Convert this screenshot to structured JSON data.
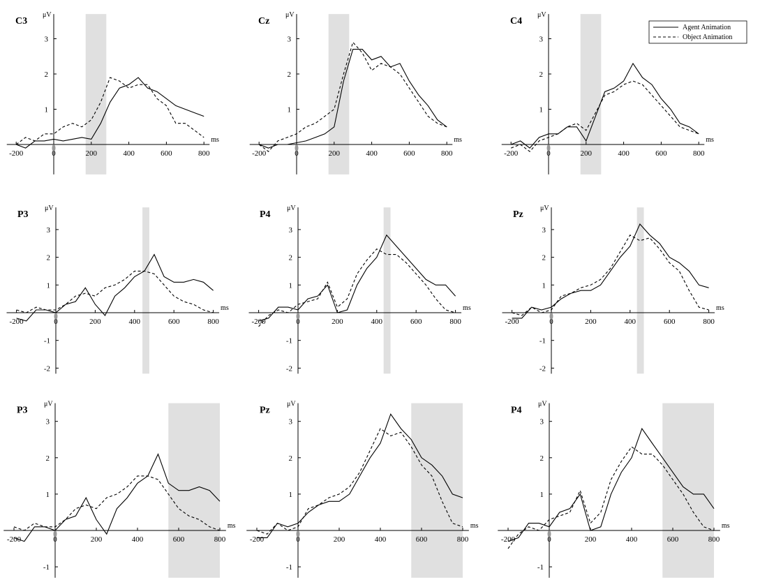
{
  "legend": [
    "Agent Animation",
    "Object Animation"
  ],
  "chart_data": [
    {
      "type": "line",
      "title": "C3",
      "y_label": "μV",
      "x_label": "ms",
      "x": [
        -200,
        -150,
        -100,
        -50,
        0,
        50,
        100,
        150,
        200,
        250,
        300,
        350,
        400,
        450,
        500,
        550,
        600,
        650,
        700,
        750,
        800
      ],
      "series": [
        {
          "style": "solid",
          "color": "#000000",
          "values": [
            0.0,
            -0.1,
            0.1,
            0.1,
            0.15,
            0.1,
            0.15,
            0.2,
            0.15,
            0.6,
            1.2,
            1.6,
            1.7,
            1.9,
            1.6,
            1.5,
            1.3,
            1.1,
            1.0,
            0.9,
            0.8
          ]
        },
        {
          "style": "dashed",
          "color": "#000000",
          "values": [
            0.0,
            0.2,
            0.1,
            0.3,
            0.3,
            0.5,
            0.6,
            0.5,
            0.7,
            1.2,
            1.9,
            1.8,
            1.6,
            1.7,
            1.7,
            1.3,
            1.1,
            0.6,
            0.6,
            0.4,
            0.2
          ]
        }
      ],
      "shade": [
        170,
        280
      ],
      "xlim": [
        -250,
        830
      ],
      "ylim": [
        -0.85,
        3.7
      ],
      "xticks": [
        -200,
        0,
        200,
        400,
        600,
        800
      ],
      "yticks": [
        1,
        2,
        3
      ]
    },
    {
      "type": "line",
      "title": "Cz",
      "y_label": "μV",
      "x_label": "ms",
      "x": [
        -200,
        -150,
        -100,
        -50,
        0,
        50,
        100,
        150,
        200,
        250,
        300,
        350,
        400,
        450,
        500,
        550,
        600,
        650,
        700,
        750,
        800
      ],
      "series": [
        {
          "style": "solid",
          "color": "#000000",
          "values": [
            0.0,
            -0.1,
            0.0,
            0.0,
            0.05,
            0.1,
            0.2,
            0.3,
            0.5,
            1.8,
            2.7,
            2.7,
            2.4,
            2.5,
            2.2,
            2.3,
            1.8,
            1.4,
            1.1,
            0.7,
            0.5
          ]
        },
        {
          "style": "dashed",
          "color": "#000000",
          "values": [
            0.0,
            -0.2,
            0.1,
            0.2,
            0.3,
            0.5,
            0.6,
            0.8,
            1.0,
            2.0,
            2.9,
            2.6,
            2.1,
            2.3,
            2.2,
            2.0,
            1.6,
            1.2,
            0.8,
            0.6,
            0.5
          ]
        }
      ],
      "shade": [
        170,
        280
      ],
      "xlim": [
        -250,
        830
      ],
      "ylim": [
        -0.85,
        3.7
      ],
      "xticks": [
        -200,
        0,
        200,
        400,
        600,
        800
      ],
      "yticks": [
        1,
        2,
        3
      ]
    },
    {
      "type": "line",
      "title": "C4",
      "y_label": "μV",
      "x_label": "ms",
      "x": [
        -200,
        -150,
        -100,
        -50,
        0,
        50,
        100,
        150,
        200,
        250,
        300,
        350,
        400,
        450,
        500,
        550,
        600,
        650,
        700,
        750,
        800
      ],
      "series": [
        {
          "style": "solid",
          "color": "#000000",
          "values": [
            0.0,
            0.1,
            -0.1,
            0.2,
            0.3,
            0.3,
            0.5,
            0.5,
            0.1,
            0.8,
            1.5,
            1.6,
            1.8,
            2.3,
            1.9,
            1.7,
            1.3,
            1.0,
            0.6,
            0.5,
            0.3
          ]
        },
        {
          "style": "dashed",
          "color": "#000000",
          "values": [
            -0.1,
            0.0,
            -0.2,
            0.1,
            0.2,
            0.3,
            0.5,
            0.6,
            0.4,
            0.9,
            1.4,
            1.5,
            1.7,
            1.8,
            1.7,
            1.4,
            1.1,
            0.8,
            0.5,
            0.4,
            0.3
          ]
        }
      ],
      "shade": [
        170,
        280
      ],
      "xlim": [
        -250,
        830
      ],
      "ylim": [
        -0.85,
        3.7
      ],
      "xticks": [
        -200,
        0,
        200,
        400,
        600,
        800
      ],
      "yticks": [
        1,
        2,
        3
      ]
    },
    {
      "type": "line",
      "title": "P3",
      "y_label": "μV",
      "x_label": "ms",
      "x": [
        -200,
        -150,
        -100,
        -50,
        0,
        50,
        100,
        150,
        200,
        250,
        300,
        350,
        400,
        450,
        500,
        550,
        600,
        650,
        700,
        750,
        800
      ],
      "series": [
        {
          "style": "solid",
          "color": "#000000",
          "values": [
            -0.2,
            -0.3,
            0.1,
            0.1,
            0.0,
            0.3,
            0.4,
            0.9,
            0.3,
            -0.1,
            0.6,
            0.9,
            1.3,
            1.5,
            2.1,
            1.3,
            1.1,
            1.1,
            1.2,
            1.1,
            0.8
          ]
        },
        {
          "style": "dashed",
          "color": "#000000",
          "values": [
            0.1,
            0.0,
            0.2,
            0.1,
            0.1,
            0.3,
            0.6,
            0.7,
            0.6,
            0.9,
            1.0,
            1.2,
            1.5,
            1.5,
            1.4,
            1.0,
            0.6,
            0.4,
            0.3,
            0.1,
            0.0
          ]
        }
      ],
      "shade": [
        440,
        475
      ],
      "xlim": [
        -250,
        830
      ],
      "ylim": [
        -2.2,
        3.8
      ],
      "xticks": [
        -200,
        0,
        200,
        400,
        600,
        800
      ],
      "yticks": [
        -2,
        -1,
        1,
        2,
        3
      ]
    },
    {
      "type": "line",
      "title": "P4",
      "y_label": "μV",
      "x_label": "ms",
      "x": [
        -200,
        -150,
        -100,
        -50,
        0,
        50,
        100,
        150,
        200,
        250,
        300,
        350,
        400,
        450,
        500,
        550,
        600,
        650,
        700,
        750,
        800
      ],
      "series": [
        {
          "style": "solid",
          "color": "#000000",
          "values": [
            -0.3,
            -0.2,
            0.2,
            0.2,
            0.1,
            0.5,
            0.6,
            1.0,
            0.0,
            0.1,
            1.0,
            1.6,
            2.0,
            2.8,
            2.4,
            2.0,
            1.6,
            1.2,
            1.0,
            1.0,
            0.6
          ]
        },
        {
          "style": "dashed",
          "color": "#000000",
          "values": [
            -0.5,
            -0.1,
            0.1,
            0.0,
            0.3,
            0.4,
            0.5,
            1.1,
            0.2,
            0.5,
            1.4,
            1.9,
            2.3,
            2.1,
            2.1,
            1.8,
            1.4,
            1.0,
            0.5,
            0.1,
            0.0
          ]
        }
      ],
      "shade": [
        435,
        470
      ],
      "xlim": [
        -250,
        830
      ],
      "ylim": [
        -2.2,
        3.8
      ],
      "xticks": [
        -200,
        0,
        200,
        400,
        600,
        800
      ],
      "yticks": [
        -2,
        -1,
        1,
        2,
        3
      ]
    },
    {
      "type": "line",
      "title": "Pz",
      "y_label": "μV",
      "x_label": "ms",
      "x": [
        -200,
        -150,
        -100,
        -50,
        0,
        50,
        100,
        150,
        200,
        250,
        300,
        350,
        400,
        450,
        500,
        550,
        600,
        650,
        700,
        750,
        800
      ],
      "series": [
        {
          "style": "solid",
          "color": "#000000",
          "values": [
            -0.2,
            -0.2,
            0.2,
            0.1,
            0.2,
            0.5,
            0.7,
            0.8,
            0.8,
            1.0,
            1.5,
            2.0,
            2.4,
            3.2,
            2.8,
            2.5,
            2.0,
            1.8,
            1.5,
            1.0,
            0.9
          ]
        },
        {
          "style": "dashed",
          "color": "#000000",
          "values": [
            0.0,
            -0.1,
            0.2,
            0.0,
            0.1,
            0.6,
            0.7,
            0.9,
            1.0,
            1.2,
            1.6,
            2.2,
            2.8,
            2.6,
            2.7,
            2.3,
            1.8,
            1.5,
            0.8,
            0.2,
            0.1
          ]
        }
      ],
      "shade": [
        435,
        470
      ],
      "xlim": [
        -250,
        830
      ],
      "ylim": [
        -2.2,
        3.8
      ],
      "xticks": [
        -200,
        0,
        200,
        400,
        600,
        800
      ],
      "yticks": [
        -2,
        -1,
        1,
        2,
        3
      ]
    },
    {
      "type": "line",
      "title": "P3",
      "y_label": "μV",
      "x_label": "ms",
      "x": [
        -200,
        -150,
        -100,
        -50,
        0,
        50,
        100,
        150,
        200,
        250,
        300,
        350,
        400,
        450,
        500,
        550,
        600,
        650,
        700,
        750,
        800
      ],
      "series": [
        {
          "style": "solid",
          "color": "#000000",
          "values": [
            -0.2,
            -0.3,
            0.1,
            0.1,
            0.0,
            0.3,
            0.4,
            0.9,
            0.3,
            -0.1,
            0.6,
            0.9,
            1.3,
            1.5,
            2.1,
            1.3,
            1.1,
            1.1,
            1.2,
            1.1,
            0.8
          ]
        },
        {
          "style": "dashed",
          "color": "#000000",
          "values": [
            0.1,
            0.0,
            0.2,
            0.1,
            0.1,
            0.3,
            0.6,
            0.7,
            0.6,
            0.9,
            1.0,
            1.2,
            1.5,
            1.5,
            1.4,
            1.0,
            0.6,
            0.4,
            0.3,
            0.1,
            0.0
          ]
        }
      ],
      "shade": [
        550,
        800
      ],
      "xlim": [
        -250,
        830
      ],
      "ylim": [
        -1.3,
        3.5
      ],
      "xticks": [
        -200,
        0,
        200,
        400,
        600,
        800
      ],
      "yticks": [
        -1,
        1,
        2,
        3
      ]
    },
    {
      "type": "line",
      "title": "Pz",
      "y_label": "μV",
      "x_label": "ms",
      "x": [
        -200,
        -150,
        -100,
        -50,
        0,
        50,
        100,
        150,
        200,
        250,
        300,
        350,
        400,
        450,
        500,
        550,
        600,
        650,
        700,
        750,
        800
      ],
      "series": [
        {
          "style": "solid",
          "color": "#000000",
          "values": [
            -0.2,
            -0.2,
            0.2,
            0.1,
            0.2,
            0.5,
            0.7,
            0.8,
            0.8,
            1.0,
            1.5,
            2.0,
            2.4,
            3.2,
            2.8,
            2.5,
            2.0,
            1.8,
            1.5,
            1.0,
            0.9
          ]
        },
        {
          "style": "dashed",
          "color": "#000000",
          "values": [
            0.0,
            -0.1,
            0.2,
            0.0,
            0.1,
            0.6,
            0.7,
            0.9,
            1.0,
            1.2,
            1.6,
            2.2,
            2.8,
            2.6,
            2.7,
            2.3,
            1.8,
            1.5,
            0.8,
            0.2,
            0.1
          ]
        }
      ],
      "shade": [
        550,
        800
      ],
      "xlim": [
        -250,
        830
      ],
      "ylim": [
        -1.3,
        3.5
      ],
      "xticks": [
        -200,
        0,
        200,
        400,
        600,
        800
      ],
      "yticks": [
        -1,
        1,
        2,
        3
      ]
    },
    {
      "type": "line",
      "title": "P4",
      "y_label": "μV",
      "x_label": "ms",
      "x": [
        -200,
        -150,
        -100,
        -50,
        0,
        50,
        100,
        150,
        200,
        250,
        300,
        350,
        400,
        450,
        500,
        550,
        600,
        650,
        700,
        750,
        800
      ],
      "series": [
        {
          "style": "solid",
          "color": "#000000",
          "values": [
            -0.3,
            -0.2,
            0.2,
            0.2,
            0.1,
            0.5,
            0.6,
            1.0,
            0.0,
            0.1,
            1.0,
            1.6,
            2.0,
            2.8,
            2.4,
            2.0,
            1.6,
            1.2,
            1.0,
            1.0,
            0.6
          ]
        },
        {
          "style": "dashed",
          "color": "#000000",
          "values": [
            -0.5,
            -0.1,
            0.1,
            0.0,
            0.3,
            0.4,
            0.5,
            1.1,
            0.2,
            0.5,
            1.4,
            1.9,
            2.3,
            2.1,
            2.1,
            1.8,
            1.4,
            1.0,
            0.5,
            0.1,
            0.0
          ]
        }
      ],
      "shade": [
        550,
        800
      ],
      "xlim": [
        -250,
        830
      ],
      "ylim": [
        -1.3,
        3.5
      ],
      "xticks": [
        -200,
        0,
        200,
        400,
        600,
        800
      ],
      "yticks": [
        -1,
        1,
        2,
        3
      ]
    }
  ]
}
